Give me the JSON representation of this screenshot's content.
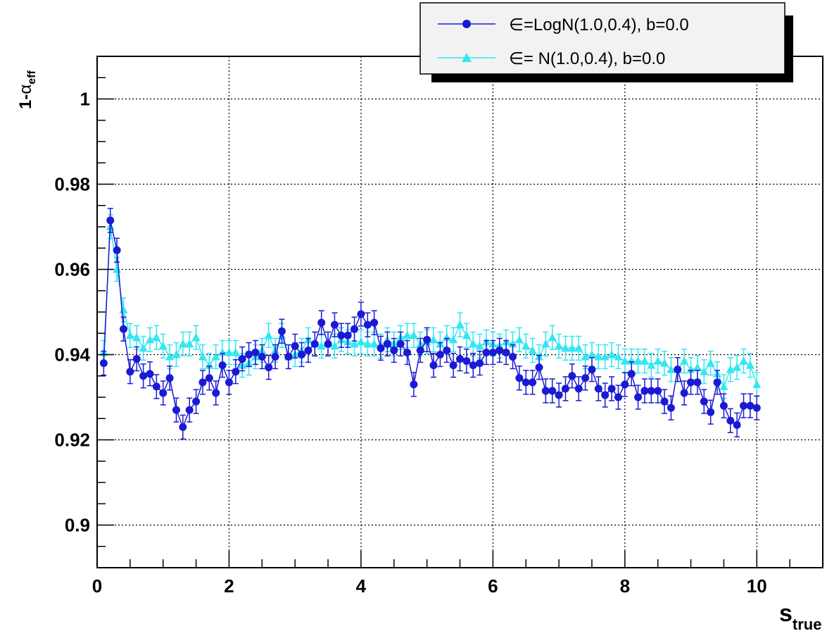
{
  "chart_data": {
    "type": "scatter",
    "xlabel_main": "s",
    "xlabel_sub": "true",
    "ylabel_prefix": "1-",
    "ylabel_symbol": "α",
    "ylabel_sub": "eff",
    "xlim": [
      0,
      11
    ],
    "ylim": [
      0.89,
      1.01
    ],
    "x_ticks": [
      0,
      2,
      4,
      6,
      8,
      10
    ],
    "x_tick_labels": [
      "0",
      "2",
      "4",
      "6",
      "8",
      "10"
    ],
    "y_ticks": [
      0.9,
      0.92,
      0.94,
      0.96,
      0.98,
      1.0
    ],
    "y_tick_labels": [
      "0.9",
      "0.92",
      "0.94",
      "0.96",
      "0.98",
      "1"
    ],
    "grid": true,
    "legend_position": "top-right",
    "series": [
      {
        "name": "∈=LogN(1.0,0.4), b=0.0",
        "marker": "circle",
        "color": "#1a1ad4",
        "error": 0.0028,
        "x": [
          0.1,
          0.2,
          0.3,
          0.4,
          0.5,
          0.6,
          0.7,
          0.8,
          0.9,
          1.0,
          1.1,
          1.2,
          1.3,
          1.4,
          1.5,
          1.6,
          1.7,
          1.8,
          1.9,
          2.0,
          2.1,
          2.2,
          2.3,
          2.4,
          2.5,
          2.6,
          2.7,
          2.8,
          2.9,
          3.0,
          3.1,
          3.2,
          3.3,
          3.4,
          3.5,
          3.6,
          3.7,
          3.8,
          3.9,
          4.0,
          4.1,
          4.2,
          4.3,
          4.4,
          4.5,
          4.6,
          4.7,
          4.8,
          4.9,
          5.0,
          5.1,
          5.2,
          5.3,
          5.4,
          5.5,
          5.6,
          5.7,
          5.8,
          5.9,
          6.0,
          6.1,
          6.2,
          6.3,
          6.4,
          6.5,
          6.6,
          6.7,
          6.8,
          6.9,
          7.0,
          7.1,
          7.2,
          7.3,
          7.4,
          7.5,
          7.6,
          7.7,
          7.8,
          7.9,
          8.0,
          8.1,
          8.2,
          8.3,
          8.4,
          8.5,
          8.6,
          8.7,
          8.8,
          8.9,
          9.0,
          9.1,
          9.2,
          9.3,
          9.4,
          9.5,
          9.6,
          9.7,
          9.8,
          9.9,
          10.0
        ],
        "y": [
          0.938,
          0.9715,
          0.9645,
          0.946,
          0.936,
          0.939,
          0.935,
          0.9355,
          0.9325,
          0.931,
          0.9345,
          0.927,
          0.923,
          0.927,
          0.929,
          0.9335,
          0.9345,
          0.931,
          0.9375,
          0.9335,
          0.936,
          0.939,
          0.94,
          0.9405,
          0.9395,
          0.937,
          0.9395,
          0.9455,
          0.9395,
          0.942,
          0.94,
          0.941,
          0.9425,
          0.9475,
          0.9425,
          0.947,
          0.9445,
          0.9445,
          0.946,
          0.9495,
          0.947,
          0.9475,
          0.9415,
          0.9425,
          0.941,
          0.9425,
          0.9405,
          0.933,
          0.941,
          0.9435,
          0.9375,
          0.94,
          0.941,
          0.9375,
          0.939,
          0.9385,
          0.9375,
          0.938,
          0.9405,
          0.9405,
          0.941,
          0.9405,
          0.9395,
          0.9345,
          0.9335,
          0.9335,
          0.937,
          0.9315,
          0.9315,
          0.9305,
          0.932,
          0.935,
          0.932,
          0.9345,
          0.9365,
          0.932,
          0.9305,
          0.932,
          0.93,
          0.933,
          0.9355,
          0.93,
          0.9315,
          0.9315,
          0.9315,
          0.929,
          0.9275,
          0.9365,
          0.931,
          0.9335,
          0.9335,
          0.929,
          0.9265,
          0.9335,
          0.928,
          0.9245,
          0.9235,
          0.928,
          0.928,
          0.9275
        ]
      },
      {
        "name": "∈=   N(1.0,0.4), b=0.0",
        "marker": "triangle",
        "color": "#33e6f2",
        "error": 0.0028,
        "x": [
          0.1,
          0.2,
          0.3,
          0.4,
          0.5,
          0.6,
          0.7,
          0.8,
          0.9,
          1.0,
          1.1,
          1.2,
          1.3,
          1.4,
          1.5,
          1.6,
          1.7,
          1.8,
          1.9,
          2.0,
          2.1,
          2.2,
          2.3,
          2.4,
          2.5,
          2.6,
          2.7,
          2.8,
          2.9,
          3.0,
          3.1,
          3.2,
          3.3,
          3.4,
          3.5,
          3.6,
          3.7,
          3.8,
          3.9,
          4.0,
          4.1,
          4.2,
          4.3,
          4.4,
          4.5,
          4.6,
          4.7,
          4.8,
          4.9,
          5.0,
          5.1,
          5.2,
          5.3,
          5.4,
          5.5,
          5.6,
          5.7,
          5.8,
          5.9,
          6.0,
          6.1,
          6.2,
          6.3,
          6.4,
          6.5,
          6.6,
          6.7,
          6.8,
          6.9,
          7.0,
          7.1,
          7.2,
          7.3,
          7.4,
          7.5,
          7.6,
          7.7,
          7.8,
          7.9,
          8.0,
          8.1,
          8.2,
          8.3,
          8.4,
          8.5,
          8.6,
          8.7,
          8.8,
          8.9,
          9.0,
          9.1,
          9.2,
          9.3,
          9.4,
          9.5,
          9.6,
          9.7,
          9.8,
          9.9,
          10.0
        ],
        "y": [
          0.9405,
          0.97,
          0.96,
          0.9505,
          0.9445,
          0.944,
          0.9415,
          0.9435,
          0.944,
          0.942,
          0.9395,
          0.94,
          0.9425,
          0.9425,
          0.944,
          0.9395,
          0.9375,
          0.9395,
          0.9405,
          0.9405,
          0.9405,
          0.9375,
          0.938,
          0.9395,
          0.941,
          0.9445,
          0.941,
          0.9445,
          0.9395,
          0.94,
          0.941,
          0.9435,
          0.9425,
          0.942,
          0.9425,
          0.942,
          0.9435,
          0.943,
          0.9425,
          0.943,
          0.9425,
          0.9425,
          0.942,
          0.9435,
          0.9425,
          0.944,
          0.9445,
          0.9445,
          0.9425,
          0.943,
          0.9435,
          0.9425,
          0.944,
          0.9435,
          0.947,
          0.9445,
          0.9425,
          0.942,
          0.943,
          0.9425,
          0.942,
          0.943,
          0.9425,
          0.9435,
          0.942,
          0.941,
          0.9395,
          0.9425,
          0.944,
          0.942,
          0.9415,
          0.9415,
          0.9415,
          0.9395,
          0.94,
          0.9395,
          0.9395,
          0.94,
          0.9395,
          0.9385,
          0.9385,
          0.9385,
          0.9385,
          0.9375,
          0.9385,
          0.938,
          0.9365,
          0.9365,
          0.9385,
          0.9365,
          0.937,
          0.936,
          0.938,
          0.9355,
          0.9325,
          0.9365,
          0.937,
          0.9385,
          0.9375,
          0.933
        ]
      }
    ]
  }
}
